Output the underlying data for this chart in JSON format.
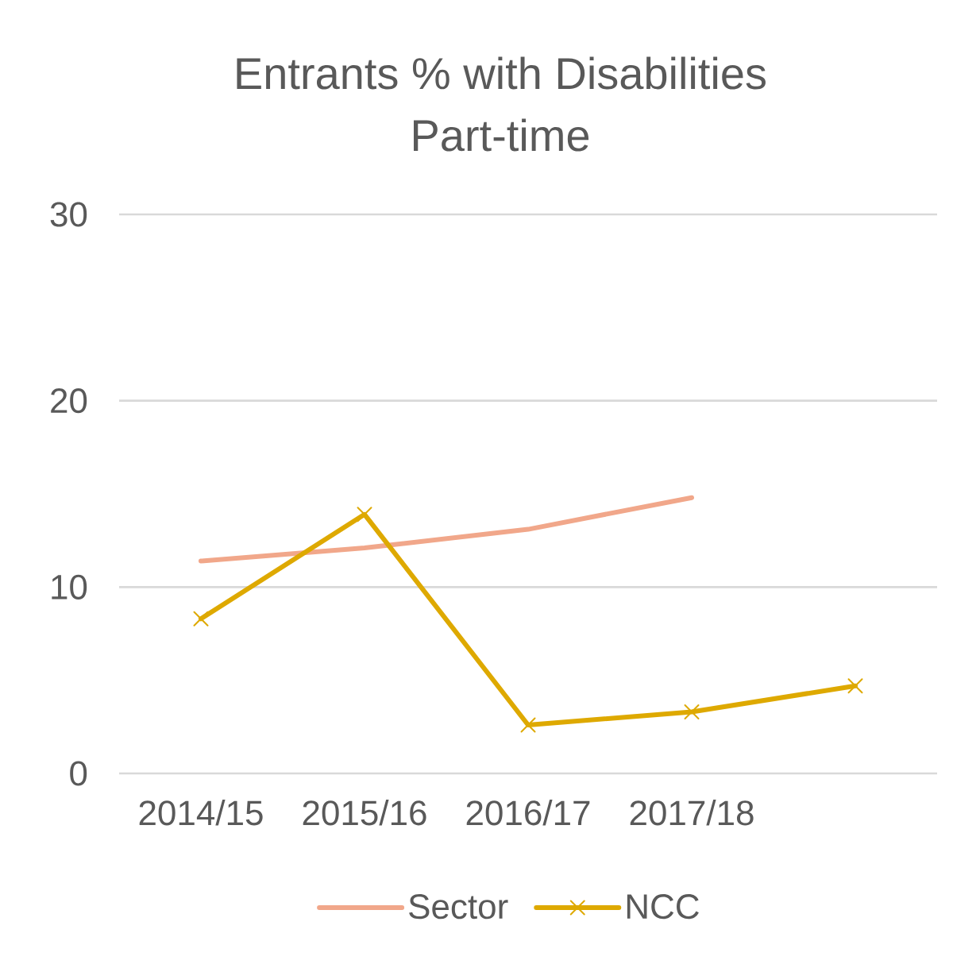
{
  "chart_data": {
    "type": "line",
    "title": "Entrants % with Disabilities",
    "subtitle": "Part-time",
    "categories": [
      "2014/15",
      "2015/16",
      "2016/17",
      "2017/18",
      null
    ],
    "series": [
      {
        "name": "Sector",
        "color": "#f1a78a",
        "marker": "none",
        "values": [
          11.4,
          12.1,
          13.1,
          14.8,
          null
        ]
      },
      {
        "name": "NCC",
        "color": "#dea900",
        "marker": "cross",
        "values": [
          8.3,
          13.9,
          2.6,
          3.3,
          4.7
        ]
      }
    ],
    "ylim": [
      0,
      30
    ],
    "yticks": [
      0,
      10,
      20,
      30
    ],
    "grid": "y",
    "legend": "bottom"
  }
}
